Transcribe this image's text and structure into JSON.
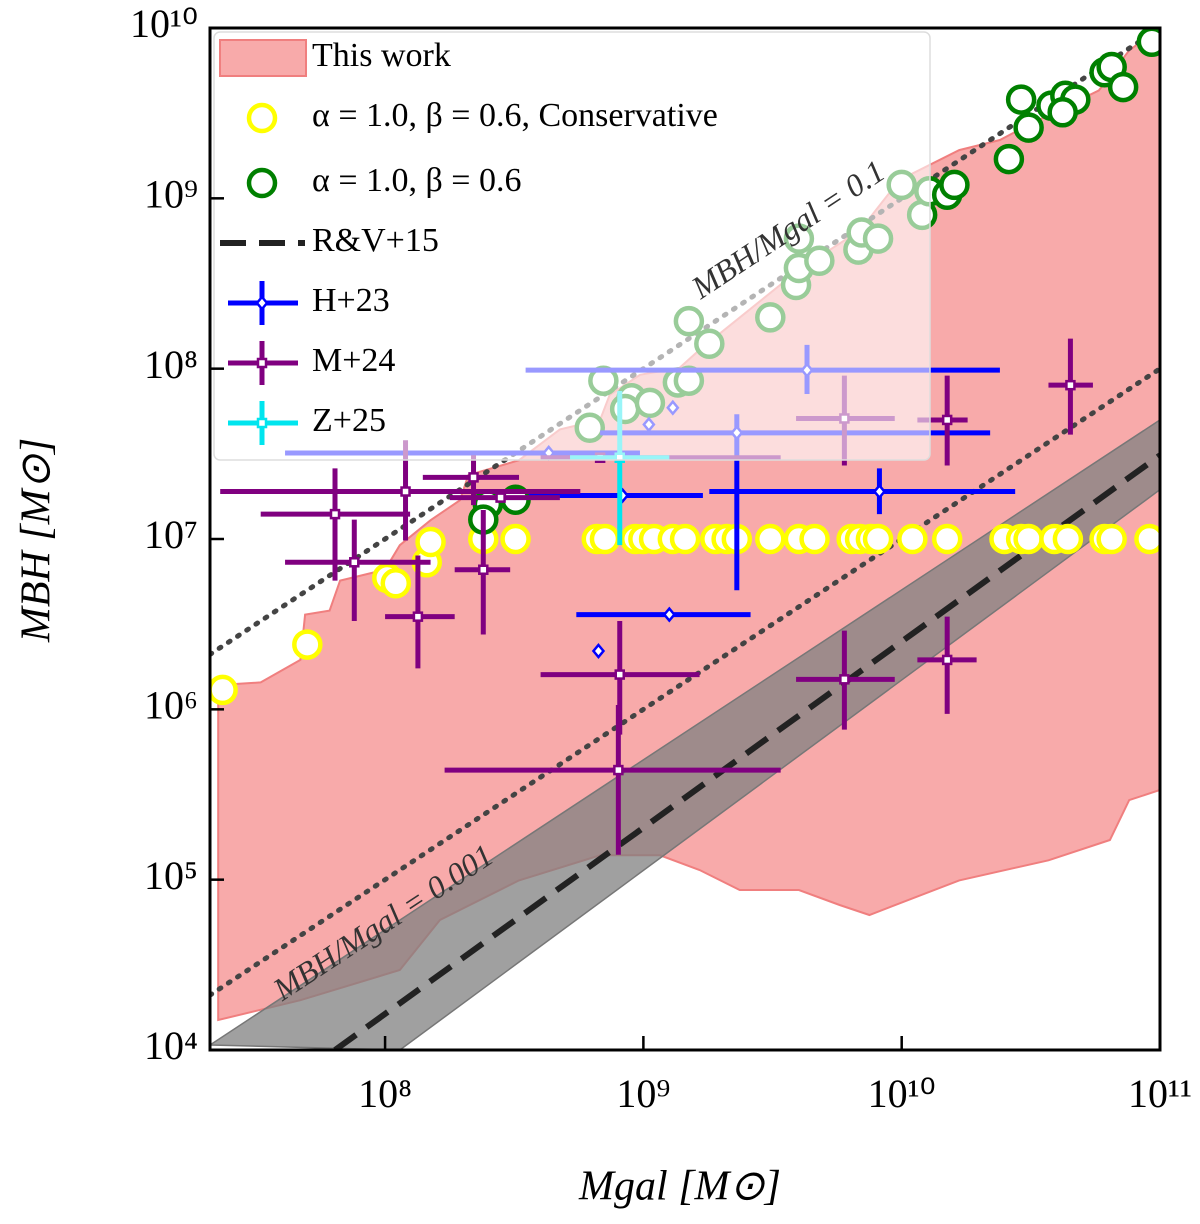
{
  "chart_data": {
    "type": "scatter",
    "x_label": "Mgal [M⊙]",
    "y_label": "MBH [M⊙]",
    "xscale": "log",
    "yscale": "log",
    "xlim": [
      21000000.0,
      100000000000.0
    ],
    "ylim": [
      10000.0,
      10000000000.0
    ],
    "xticks": [
      {
        "value": 100000000.0,
        "label": "10⁸"
      },
      {
        "value": 1000000000.0,
        "label": "10⁹"
      },
      {
        "value": 10000000000.0,
        "label": "10¹⁰"
      },
      {
        "value": 100000000000.0,
        "label": "10¹¹"
      }
    ],
    "yticks": [
      {
        "value": 10000.0,
        "label": "10⁴"
      },
      {
        "value": 100000.0,
        "label": "10⁵"
      },
      {
        "value": 1000000.0,
        "label": "10⁶"
      },
      {
        "value": 10000000.0,
        "label": "10⁷"
      },
      {
        "value": 100000000.0,
        "label": "10⁸"
      },
      {
        "value": 1000000000.0,
        "label": "10⁹"
      },
      {
        "value": 10000000000.0,
        "label": "10¹⁰"
      }
    ],
    "legend": "upper left",
    "series": [
      {
        "name": "This work",
        "kind": "region",
        "color": "#f8aaaa",
        "edge_color": "#f07f7f",
        "x": [
          22600000.0,
          23000000.0,
          33000000.0,
          47000000.0,
          49000000.0,
          61000000.0,
          67000000.0,
          100000000.0,
          114000000.0,
          150000000.0,
          195000000.0,
          210000000.0,
          330000000.0,
          475000000.0,
          680000000.0,
          740000000.0,
          970000000.0,
          1380000000.0,
          1650000000.0,
          4000000000.0,
          6900000000.0,
          9800000000.0,
          16700000000.0,
          24000000000.0,
          31000000000.0,
          58000000000.0,
          76000000000.0,
          100000000000.0,
          100000000000.0,
          76000000000.0,
          64000000000.0,
          37000000000.0,
          16700000000.0,
          7500000000.0,
          5750000000.0,
          4000000000.0,
          2360000000.0,
          1650000000.0,
          1160000000.0,
          680000000.0,
          330000000.0,
          163000000.0,
          114000000.0,
          47000000.0,
          22600000.0
        ],
        "values": [
          1130000.0,
          1390000.0,
          1440000.0,
          1950000.0,
          3600000.0,
          3800000.0,
          5700000.0,
          6600000.0,
          9200000.0,
          12900000.0,
          16900000.0,
          23700000.0,
          29000000.0,
          44000000.0,
          50000000.0,
          70000000.0,
          92000000.0,
          101000000.0,
          129000000.0,
          380000000.0,
          650000000.0,
          1280000000.0,
          1920000000.0,
          2200000000.0,
          2700000000.0,
          4300000000.0,
          7400000000.0,
          10000000000.0,
          336000.0,
          293000.0,
          171000.0,
          130000.0,
          99000.0,
          62000.0,
          71000.0,
          87000.0,
          87000.0,
          114000.0,
          139000.0,
          139000.0,
          99000.0,
          58000.0,
          29500.0,
          19600.0,
          15000.0
        ]
      },
      {
        "name": "α = 1.0, β = 0.6, Conservative",
        "kind": "circle",
        "color": "#ffff00",
        "x": [
          23500000.0,
          50000000.0,
          102000000.0,
          110000000.0,
          145000000.0,
          150000000.0,
          240000000.0,
          320000000.0,
          660000000.0,
          710000000.0,
          930000000.0,
          1000000000.0,
          1100000000.0,
          1300000000.0,
          1450000000.0,
          1900000000.0,
          2100000000.0,
          2300000000.0,
          3100000000.0,
          4000000000.0,
          4600000000.0,
          6400000000.0,
          6900000000.0,
          7600000000.0,
          8100000000.0,
          11000000000.0,
          15000000000.0,
          25000000000.0,
          29000000000.0,
          31000000000.0,
          39000000000.0,
          44000000000.0,
          61000000000.0,
          65000000000.0,
          91000000000.0
        ],
        "values": [
          1300000.0,
          2400000.0,
          5900000.0,
          5500000.0,
          7300000.0,
          9600000.0,
          10000000.0,
          10000000.0,
          10000000.0,
          10000000.0,
          10000000.0,
          10000000.0,
          10000000.0,
          10000000.0,
          10000000.0,
          10000000.0,
          10000000.0,
          10000000.0,
          10000000.0,
          10000000.0,
          10000000.0,
          10000000.0,
          10000000.0,
          10000000.0,
          10000000.0,
          10000000.0,
          10000000.0,
          10000000.0,
          10000000.0,
          10000000.0,
          10000000.0,
          10000000.0,
          10000000.0,
          10000000.0,
          10000000.0
        ]
      },
      {
        "name": "α = 1.0, β = 0.6",
        "kind": "circle",
        "color": "#008000",
        "x": [
          250000000.0,
          240000000.0,
          320000000.0,
          620000000.0,
          700000000.0,
          900000000.0,
          850000000.0,
          1060000000.0,
          1360000000.0,
          1500000000.0,
          1500000000.0,
          1800000000.0,
          3100000000.0,
          3900000000.0,
          4000000000.0,
          4800000000.0,
          4000000000.0,
          6800000000.0,
          7000000000.0,
          8100000000.0,
          10000000000.0,
          12000000000.0,
          12800000000.0,
          15000000000.0,
          16000000000.0,
          26000000000.0,
          29000000000.0,
          31000000000.0,
          38000000000.0,
          43000000000.0,
          47000000000.0,
          42000000000.0,
          61000000000.0,
          65000000000.0,
          72000000000.0,
          93000000000.0
        ],
        "values": [
          16000000.0,
          13000000.0,
          17000000.0,
          45000000.0,
          85000000.0,
          67000000.0,
          58000000.0,
          63000000.0,
          83000000.0,
          85000000.0,
          190000000.0,
          140000000.0,
          200000000.0,
          310000000.0,
          390000000.0,
          430000000.0,
          580000000.0,
          500000000.0,
          630000000.0,
          580000000.0,
          1200000000.0,
          800000000.0,
          1100000000.0,
          1050000000.0,
          1200000000.0,
          1700000000.0,
          3800000000.0,
          2600000000.0,
          3500000000.0,
          4000000000.0,
          3800000000.0,
          3200000000.0,
          5500000000.0,
          5900000000.0,
          4500000000.0,
          8300000000.0
        ]
      },
      {
        "name": "R&V+15",
        "kind": "dashed",
        "color": "#222222",
        "band_color": "#808080",
        "x": [
          64000000.0,
          100000000000.0
        ],
        "values": [
          10000.0,
          31000000.0
        ],
        "band_x": [
          21000000.0,
          100000000000.0,
          100000000000.0,
          114000000.0
        ],
        "band_values": [
          10700.0,
          50000000.0,
          19500000.0,
          10000.0
        ]
      },
      {
        "name": "H+23",
        "kind": "errorbar",
        "marker": "diamond",
        "color": "#0000ff",
        "x": [
          4300000000.0,
          1300000000.0,
          1050000000.0,
          2300000000.0,
          430000000.0,
          830000000.0,
          8200000000.0,
          1260000000.0,
          670000000.0
        ],
        "values": [
          98000000.0,
          59000000.0,
          47000000.0,
          42000000.0,
          32000000.0,
          18000000.0,
          19000000.0,
          3600000.0,
          2200000.0
        ],
        "x_lower": [
          350000000.0,
          null,
          null,
          680000000.0,
          41000000.0,
          360000000.0,
          1800000000.0,
          550000000.0,
          null
        ],
        "x_upper": [
          24000000000.0,
          null,
          null,
          22000000000.0,
          970000000.0,
          1700000000.0,
          27500000000.0,
          2600000000.0,
          null
        ],
        "y_lower": [
          71000000.0,
          null,
          null,
          5000000.0,
          null,
          null,
          14000000.0,
          null,
          null
        ],
        "y_upper": [
          138000000.0,
          null,
          null,
          54000000.0,
          null,
          null,
          26000000.0,
          null,
          null
        ]
      },
      {
        "name": "M+24",
        "kind": "errorbar",
        "marker": "square",
        "color": "#800080",
        "x": [
          45000000000.0,
          6000000000.0,
          15000000000.0,
          64000000.0,
          120000000.0,
          220000000.0,
          280000000.0,
          76000000.0,
          134000000.0,
          240000000.0,
          810000000.0,
          800000000.0,
          6000000000.0,
          15000000000.0,
          680000000.0
        ],
        "values": [
          80000000.0,
          51000000.0,
          50000000.0,
          14000000.0,
          19000000.0,
          23000000.0,
          17500000.0,
          7300000.0,
          3500000.0,
          6600000.0,
          1600000.0,
          440000.0,
          1500000.0,
          1950000.0,
          30000000.0
        ],
        "x_lower": [
          37000000000.0,
          3900000000.0,
          11500000000.0,
          33000000.0,
          23000000.0,
          140000000.0,
          178000000.0,
          41000000.0,
          100000000.0,
          186000000.0,
          400000000.0,
          170000000.0,
          3900000000.0,
          11500000000.0,
          400000000.0
        ],
        "x_upper": [
          55000000000.0,
          9400000000.0,
          18000000000.0,
          125000000.0,
          570000000.0,
          330000000.0,
          475000000.0,
          150000000.0,
          186000000.0,
          305000000.0,
          1650000000.0,
          3400000000.0,
          9400000000.0,
          19500000000.0,
          3400000000.0
        ],
        "y_lower": [
          41000000.0,
          27000000.0,
          27000000.0,
          5700000.0,
          9800000.0,
          15800000.0,
          null,
          3300000.0,
          1740000.0,
          2750000.0,
          710000.0,
          140000.0,
          760000.0,
          940000.0,
          null
        ],
        "y_upper": [
          150000000.0,
          91000000.0,
          91000000.0,
          26000000.0,
          38000000.0,
          31000000.0,
          null,
          13000000.0,
          8000000.0,
          14800000.0,
          3300000.0,
          1060000.0,
          2900000.0,
          3500000.0,
          null
        ]
      },
      {
        "name": "Z+25",
        "kind": "errorbar",
        "marker": "square",
        "color": "#00e5ee",
        "x": [
          810000000.0
        ],
        "values": [
          30000000.0
        ],
        "x_lower": [
          520000000.0
        ],
        "x_upper": [
          1260000000.0
        ],
        "y_lower": [
          9200000.0
        ],
        "y_upper": [
          74000000.0
        ]
      }
    ],
    "reference_lines": [
      {
        "label": "MBH/Mgal = 0.1",
        "color": "#444444",
        "x": [
          21000000.0,
          100000000000.0
        ],
        "values": [
          2100000.0,
          10000000000.0
        ]
      },
      {
        "label": "MBH/Mgal = 0.001",
        "color": "#444444",
        "x": [
          21000000.0,
          100000000000.0
        ],
        "values": [
          21000.0,
          100000000.0
        ]
      }
    ]
  }
}
